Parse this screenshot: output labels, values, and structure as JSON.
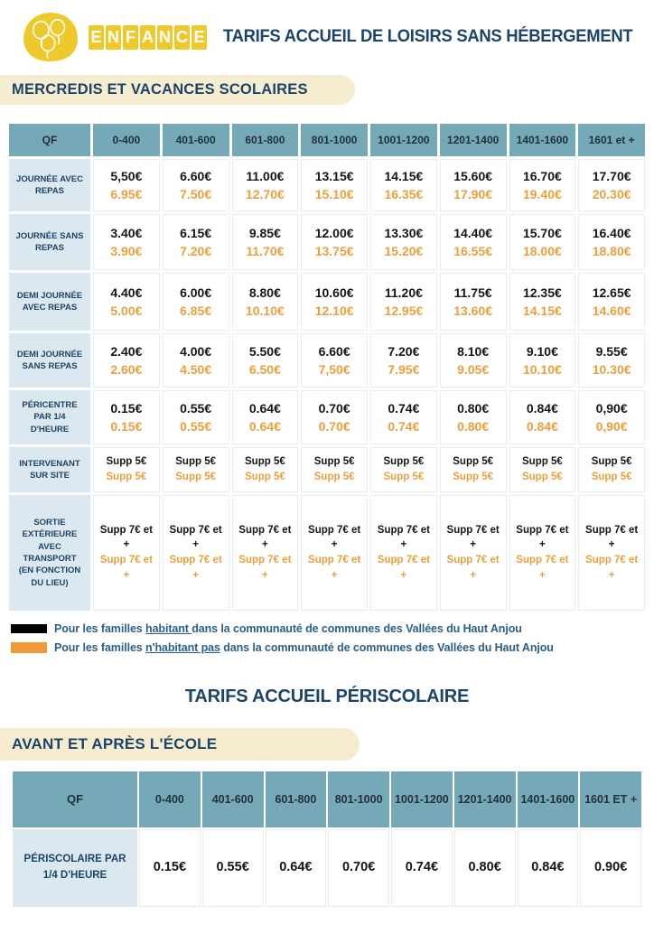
{
  "header": {
    "logo_text": "ENFANCE",
    "title": "TARIFS ACCUEIL DE LOISIRS SANS HÉBERGEMENT"
  },
  "section1": {
    "banner": "MERCREDIS ET VACANCES SCOLAIRES",
    "table": {
      "corner": "QF",
      "columns": [
        "0-400",
        "401-600",
        "601-800",
        "801-1000",
        "1001-1200",
        "1201-1400",
        "1401-1600",
        "1601 et +"
      ],
      "rows": [
        {
          "label": "JOURNÉE AVEC REPAS",
          "resident": [
            "5,50€",
            "6.60€",
            "11.00€",
            "13.15€",
            "14.15€",
            "15.60€",
            "16.70€",
            "17.70€"
          ],
          "non_resident": [
            "6.95€",
            "7.50€",
            "12.70€",
            "15.10€",
            "16.35€",
            "17.90€",
            "19.40€",
            "20.30€"
          ]
        },
        {
          "label": "JOURNÉE SANS REPAS",
          "resident": [
            "3.40€",
            "6.15€",
            "9.85€",
            "12.00€",
            "13.30€",
            "14.40€",
            "15.70€",
            "16.40€"
          ],
          "non_resident": [
            "3.90€",
            "7.20€",
            "11.70€",
            "13.75€",
            "15.20€",
            "16.55€",
            "18.00€",
            "18.80€"
          ]
        },
        {
          "label": "DEMI JOURNÉE AVEC REPAS",
          "resident": [
            "4.40€",
            "6.00€",
            "8.80€",
            "10.60€",
            "11.20€",
            "11.75€",
            "12.35€",
            "12.65€"
          ],
          "non_resident": [
            "5.00€",
            "6.85€",
            "10.10€",
            "12.10€",
            "12.95€",
            "13.60€",
            "14.15€",
            "14.60€"
          ]
        },
        {
          "label": "DEMI JOURNÉE SANS REPAS",
          "resident": [
            "2.40€",
            "4.00€",
            "5.50€",
            "6.60€",
            "7.20€",
            "8.10€",
            "9.10€",
            "9.55€"
          ],
          "non_resident": [
            "2.60€",
            "4.50€",
            "6.50€",
            "7,50€",
            "7.95€",
            "9.05€",
            "10.10€",
            "10.30€"
          ]
        },
        {
          "label": "PÉRICENTRE PAR 1/4 D'HEURE",
          "resident": [
            "0.15€",
            "0.55€",
            "0.64€",
            "0.70€",
            "0.74€",
            "0.80€",
            "0.84€",
            "0,90€"
          ],
          "non_resident": [
            "0.15€",
            "0.55€",
            "0.64€",
            "0.70€",
            "0.74€",
            "0.80€",
            "0.84€",
            "0,90€"
          ]
        },
        {
          "label": "INTERVENANT SUR SITE",
          "resident": [
            "Supp 5€",
            "Supp 5€",
            "Supp 5€",
            "Supp 5€",
            "Supp 5€",
            "Supp 5€",
            "Supp 5€",
            "Supp 5€"
          ],
          "non_resident": [
            "Supp 5€",
            "Supp 5€",
            "Supp 5€",
            "Supp 5€",
            "Supp 5€",
            "Supp 5€",
            "Supp 5€",
            "Supp 5€"
          ]
        },
        {
          "label": "SORTIE EXTÉRIEURE AVEC TRANSPORT (EN FONCTION DU LIEU)",
          "resident": [
            "Supp 7€ et +",
            "Supp 7€ et +",
            "Supp 7€ et +",
            "Supp 7€ et +",
            "Supp 7€ et +",
            "Supp 7€ et +",
            "Supp 7€ et +",
            "Supp 7€ et +"
          ],
          "non_resident": [
            "Supp 7€ et +",
            "Supp 7€ et +",
            "Supp 7€ et +",
            "Supp 7€ et +",
            "Supp 7€ et +",
            "Supp 7€ et +",
            "Supp 7€ et +",
            "Supp 7€ et +"
          ]
        }
      ]
    }
  },
  "legend": {
    "resident": {
      "prefix": "Pour les familles ",
      "underline": "habitant ",
      "suffix": "dans la communauté de communes des Vallées du Haut Anjou"
    },
    "non_resident": {
      "prefix": "Pour les familles ",
      "underline": "n'habitant pas",
      "suffix": " dans la communauté de communes des Vallées du Haut Anjou"
    }
  },
  "section2": {
    "title": "TARIFS ACCUEIL PÉRISCOLAIRE",
    "banner": "AVANT ET APRÈS L'ÉCOLE",
    "table": {
      "corner": "QF",
      "columns": [
        "0-400",
        "401-600",
        "601-800",
        "801-1000",
        "1001-1200",
        "1201-1400",
        "1401-1600",
        "1601 ET +"
      ],
      "row_label": "PÉRISCOLAIRE PAR 1/4 D'HEURE",
      "values": [
        "0.15€",
        "0.55€",
        "0.64€",
        "0.70€",
        "0.74€",
        "0.80€",
        "0.84€",
        "0.90€"
      ]
    }
  },
  "colors": {
    "accent_yellow": "#EDC92C",
    "navy": "#1C4468",
    "teal_header": "#76A9B8",
    "light_blue_label": "#DBE8F0",
    "cream_banner": "#F6EDD0",
    "resident_black": "#161616",
    "non_resident_orange": "#E9A03C",
    "legend_orange": "#F09C36"
  }
}
